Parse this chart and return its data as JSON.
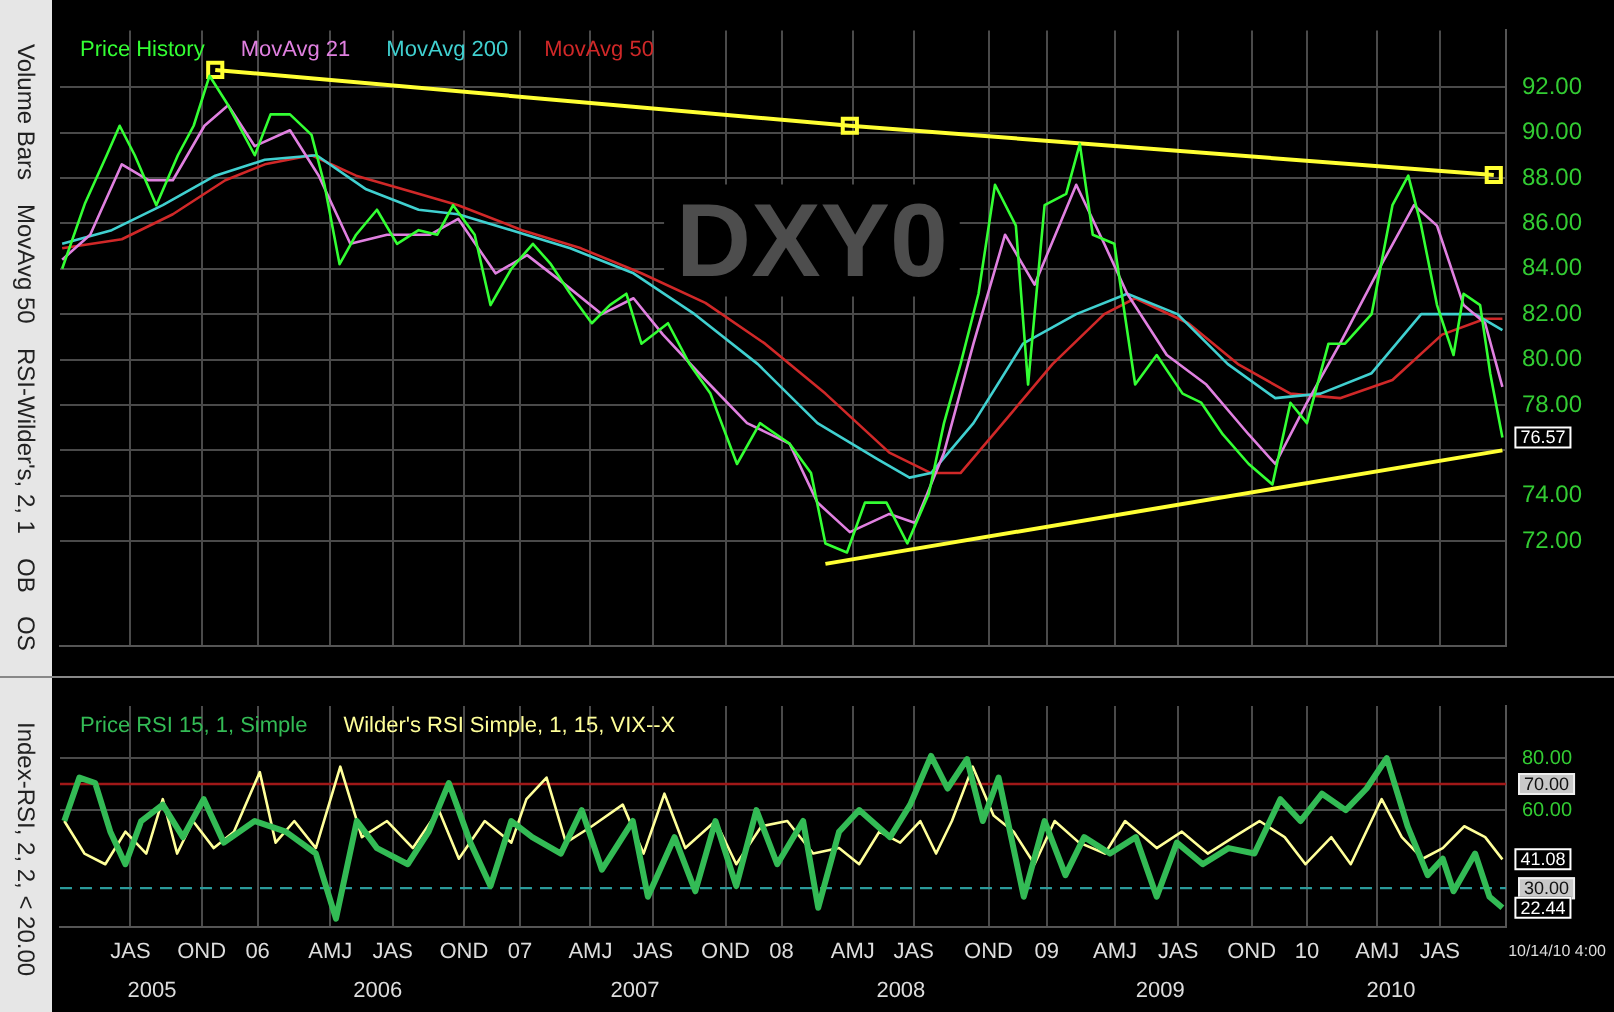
{
  "chart_data": [
    {
      "type": "line",
      "title": "DXY0",
      "legend": "top left",
      "grid": true,
      "marker": "none",
      "tick_labels": "y",
      "xlim": [
        "2005-04-16",
        "2010-10-19"
      ],
      "xticks": [
        {
          "value": "2005-07-23",
          "label": null
        },
        {
          "value": "2005-10-30",
          "label": null
        },
        {
          "value": "2006-01-16",
          "label": null
        },
        {
          "value": "2006-04-27",
          "label": null
        },
        {
          "value": "2006-07-23",
          "label": null
        },
        {
          "value": "2006-10-30",
          "label": null
        },
        {
          "value": "2007-01-16",
          "label": null
        },
        {
          "value": "2007-04-24",
          "label": null
        },
        {
          "value": "2007-07-20",
          "label": null
        },
        {
          "value": "2007-10-29",
          "label": null
        },
        {
          "value": "2008-01-15",
          "label": null
        },
        {
          "value": "2008-04-23",
          "label": null
        },
        {
          "value": "2008-07-17",
          "label": null
        },
        {
          "value": "2008-10-29",
          "label": null
        },
        {
          "value": "2009-01-18",
          "label": null
        },
        {
          "value": "2009-04-23",
          "label": null
        },
        {
          "value": "2009-07-20",
          "label": null
        },
        {
          "value": "2009-10-30",
          "label": null
        },
        {
          "value": "2010-01-15",
          "label": null
        },
        {
          "value": "2010-04-23",
          "label": null
        },
        {
          "value": "2010-07-19",
          "label": null
        }
      ],
      "ylim": [
        67.4,
        94.5
      ],
      "yticks": [
        {
          "value": 72,
          "label": "72.00"
        },
        {
          "value": 74,
          "label": "74.00"
        },
        {
          "value": 76,
          "label": null
        },
        {
          "value": 78,
          "label": "78.00"
        },
        {
          "value": 80,
          "label": "80.00"
        },
        {
          "value": 82,
          "label": "82.00"
        },
        {
          "value": 84,
          "label": "84.00"
        },
        {
          "value": 86,
          "label": "86.00"
        },
        {
          "value": 88,
          "label": "88.00"
        },
        {
          "value": 90,
          "label": "90.00"
        },
        {
          "value": 92,
          "label": "92.00"
        }
      ],
      "series": [
        {
          "name": "Price History",
          "color": "#33ff33",
          "x": [
            "2005-04-19",
            "2005-05-21",
            "2005-06-20",
            "2005-07-08",
            "2005-07-29",
            "2005-08-28",
            "2005-09-27",
            "2005-10-19",
            "2005-11-10",
            "2005-12-06",
            "2006-01-12",
            "2006-02-03",
            "2006-03-02",
            "2006-04-01",
            "2006-04-19",
            "2006-05-10",
            "2006-06-02",
            "2006-07-01",
            "2006-07-29",
            "2006-08-28",
            "2006-09-23",
            "2006-10-15",
            "2006-11-14",
            "2006-12-06",
            "2007-01-04",
            "2007-02-03",
            "2007-02-28",
            "2007-03-27",
            "2007-04-26",
            "2007-05-21",
            "2007-06-13",
            "2007-07-04",
            "2007-08-10",
            "2007-09-09",
            "2007-10-08",
            "2007-11-14",
            "2007-12-16",
            "2008-01-26",
            "2008-02-25",
            "2008-03-16",
            "2008-04-15",
            "2008-05-10",
            "2008-06-09",
            "2008-07-08",
            "2008-08-07",
            "2008-08-28",
            "2008-09-20",
            "2008-10-15",
            "2008-11-07",
            "2008-12-06",
            "2008-12-23",
            "2009-01-15",
            "2009-02-14",
            "2009-03-05",
            "2009-03-23",
            "2009-04-22",
            "2009-05-21",
            "2009-06-20",
            "2009-07-26",
            "2009-08-21",
            "2009-09-20",
            "2009-10-26",
            "2009-11-28",
            "2009-12-23",
            "2010-01-15",
            "2010-02-14",
            "2010-03-09",
            "2010-04-15",
            "2010-05-14",
            "2010-06-05",
            "2010-06-23",
            "2010-07-15",
            "2010-08-07",
            "2010-08-21",
            "2010-09-13",
            "2010-09-27",
            "2010-10-14"
          ],
          "values": [
            84.0,
            86.9,
            89.0,
            90.3,
            89.0,
            86.8,
            89.0,
            90.3,
            92.5,
            91.2,
            89.0,
            90.8,
            90.8,
            89.9,
            87.7,
            84.2,
            85.5,
            86.6,
            85.1,
            85.7,
            85.5,
            86.8,
            85.5,
            82.4,
            84.0,
            85.1,
            84.2,
            82.9,
            81.6,
            82.4,
            82.9,
            80.7,
            81.6,
            79.8,
            78.5,
            75.4,
            77.2,
            76.3,
            75.0,
            71.9,
            71.5,
            73.7,
            73.7,
            71.9,
            74.1,
            77.2,
            79.8,
            82.9,
            87.7,
            85.9,
            78.9,
            86.8,
            87.3,
            89.5,
            85.5,
            85.1,
            78.9,
            80.2,
            78.5,
            78.1,
            76.7,
            75.4,
            74.5,
            78.1,
            77.2,
            80.7,
            80.7,
            82.0,
            86.8,
            88.1,
            85.9,
            82.4,
            80.2,
            82.9,
            82.4,
            79.4,
            76.57
          ]
        },
        {
          "name": "MovAvg 21",
          "color": "#e080e0",
          "x": [
            "2005-04-19",
            "2005-05-28",
            "2005-07-11",
            "2005-08-17",
            "2005-09-20",
            "2005-11-03",
            "2005-12-06",
            "2006-01-12",
            "2006-03-02",
            "2006-04-11",
            "2006-05-25",
            "2006-07-15",
            "2006-09-13",
            "2006-10-22",
            "2006-12-13",
            "2007-01-26",
            "2007-03-20",
            "2007-05-10",
            "2007-06-23",
            "2007-08-03",
            "2007-10-01",
            "2007-11-28",
            "2008-01-26",
            "2008-03-05",
            "2008-04-19",
            "2008-06-13",
            "2008-07-19",
            "2008-08-28",
            "2008-10-08",
            "2008-11-21",
            "2009-01-01",
            "2009-02-28",
            "2009-04-08",
            "2009-05-10",
            "2009-07-04",
            "2009-08-28",
            "2009-10-26",
            "2009-12-02",
            "2010-01-15",
            "2010-03-02",
            "2010-04-29",
            "2010-06-13",
            "2010-07-15",
            "2010-08-21",
            "2010-09-20",
            "2010-10-14"
          ],
          "values": [
            84.4,
            85.5,
            88.6,
            87.9,
            87.9,
            90.3,
            91.2,
            89.4,
            90.1,
            88.1,
            85.1,
            85.5,
            85.5,
            86.2,
            83.8,
            84.6,
            83.3,
            82.0,
            82.7,
            81.1,
            79.1,
            77.2,
            76.3,
            73.7,
            72.4,
            73.2,
            72.8,
            75.9,
            80.7,
            85.5,
            83.3,
            87.7,
            85.1,
            82.9,
            80.2,
            78.9,
            76.7,
            75.4,
            78.1,
            80.7,
            84.2,
            86.8,
            85.9,
            82.4,
            81.6,
            78.8
          ]
        },
        {
          "name": "MovAvg 200",
          "color": "#40d0d0",
          "x": [
            "2005-04-19",
            "2005-06-27",
            "2005-09-06",
            "2005-11-18",
            "2006-01-26",
            "2006-04-08",
            "2006-06-16",
            "2006-08-28",
            "2006-10-22",
            "2007-01-04",
            "2007-03-27",
            "2007-06-23",
            "2007-09-16",
            "2007-12-13",
            "2008-03-05",
            "2008-05-28",
            "2008-07-11",
            "2008-08-10",
            "2008-10-08",
            "2008-12-16",
            "2009-02-28",
            "2009-05-10",
            "2009-07-19",
            "2009-09-27",
            "2009-12-02",
            "2010-02-03",
            "2010-04-15",
            "2010-06-23",
            "2010-09-06",
            "2010-10-14"
          ],
          "values": [
            85.1,
            85.7,
            86.8,
            88.1,
            88.8,
            89.0,
            87.5,
            86.6,
            86.4,
            85.7,
            84.9,
            83.8,
            82.0,
            79.8,
            77.2,
            75.6,
            74.8,
            75.0,
            77.2,
            80.7,
            82.0,
            82.9,
            82.0,
            79.8,
            78.3,
            78.5,
            79.4,
            82.0,
            82.0,
            81.3
          ]
        },
        {
          "name": "MovAvg 50",
          "color": "#d02828",
          "x": [
            "2005-04-19",
            "2005-07-11",
            "2005-09-20",
            "2005-12-02",
            "2006-01-26",
            "2006-04-01",
            "2006-06-02",
            "2006-08-28",
            "2006-10-22",
            "2007-01-19",
            "2007-04-11",
            "2007-07-04",
            "2007-10-01",
            "2007-12-23",
            "2008-03-16",
            "2008-06-13",
            "2008-08-10",
            "2008-09-20",
            "2008-11-18",
            "2009-01-26",
            "2009-04-08",
            "2009-05-21",
            "2009-08-03",
            "2009-10-11",
            "2009-12-23",
            "2010-03-02",
            "2010-05-14",
            "2010-07-22",
            "2010-09-20",
            "2010-10-14"
          ],
          "values": [
            84.9,
            85.3,
            86.4,
            87.9,
            88.6,
            89.0,
            88.1,
            87.3,
            86.8,
            85.7,
            84.9,
            83.8,
            82.5,
            80.7,
            78.5,
            75.9,
            75.0,
            75.0,
            77.2,
            79.8,
            82.0,
            82.7,
            81.6,
            79.8,
            78.5,
            78.3,
            79.1,
            81.1,
            81.8,
            81.8
          ]
        },
        {
          "type": "line",
          "color": "#ffff33",
          "marker": "square",
          "x": [
            "2005-11-18",
            "2008-04-19",
            "2010-10-02"
          ],
          "values": [
            92.76,
            90.3,
            88.13
          ]
        },
        {
          "type": "line",
          "color": "#ffff33",
          "x": [
            "2008-03-16",
            "2010-10-14"
          ],
          "values": [
            71.0,
            76.0
          ]
        }
      ],
      "annotations": [
        {
          "text": "76.57",
          "x": "2010-10-14",
          "y": 76.57
        },
        "Volume Bars",
        "MovAvg 50",
        "RSI-Wilder's, 2, 1",
        "OB",
        "OS"
      ]
    },
    {
      "type": "line",
      "legend": "top left",
      "grid": true,
      "marker": "none",
      "xlim": [
        "2005-04-16",
        "2010-10-19"
      ],
      "xticks": [
        {
          "value": "2005-07-23",
          "label": "JAS"
        },
        {
          "value": "2005-10-30",
          "label": "OND"
        },
        {
          "value": "2006-01-16",
          "label": "06"
        },
        {
          "value": "2006-04-27",
          "label": "AMJ"
        },
        {
          "value": "2006-07-23",
          "label": "JAS"
        },
        {
          "value": "2006-10-30",
          "label": "OND"
        },
        {
          "value": "2007-01-16",
          "label": "07"
        },
        {
          "value": "2007-04-24",
          "label": "AMJ"
        },
        {
          "value": "2007-07-20",
          "label": "JAS"
        },
        {
          "value": "2007-10-29",
          "label": "OND"
        },
        {
          "value": "2008-01-15",
          "label": "08"
        },
        {
          "value": "2008-04-23",
          "label": "AMJ"
        },
        {
          "value": "2008-07-17",
          "label": "JAS"
        },
        {
          "value": "2008-10-29",
          "label": "OND"
        },
        {
          "value": "2009-01-18",
          "label": "09"
        },
        {
          "value": "2009-04-23",
          "label": "AMJ"
        },
        {
          "value": "2009-07-20",
          "label": "JAS"
        },
        {
          "value": "2009-10-30",
          "label": "OND"
        },
        {
          "value": "2010-01-15",
          "label": "10"
        },
        {
          "value": "2010-04-23",
          "label": "AMJ"
        },
        {
          "value": "2010-07-19",
          "label": "JAS"
        }
      ],
      "ylim": [
        15,
        100
      ],
      "x2lim": [
        "2005-04-16",
        "2010-10-19"
      ],
      "x2ticks": [
        {
          "value": "2005-08-22",
          "label": "2005"
        },
        {
          "value": "2006-07-02",
          "label": "2006"
        },
        {
          "value": "2007-06-25",
          "label": "2007"
        },
        {
          "value": "2008-06-29",
          "label": "2008"
        },
        {
          "value": "2009-06-25",
          "label": "2009"
        },
        {
          "value": "2010-05-12",
          "label": "2010"
        }
      ],
      "yticks": [
        {
          "value": 60,
          "label": "60.00"
        },
        {
          "value": 80,
          "label": "80.00"
        }
      ],
      "ref_lines": [
        {
          "axis": "y",
          "value": 70,
          "label": "70.00",
          "color": "#a01818"
        },
        {
          "axis": "y",
          "value": 30,
          "label": "30.00",
          "color": "#2a9a9a",
          "line_style": "dashed"
        }
      ],
      "series": [
        {
          "name": "Price RSI 15, 1, Simple",
          "color": "#33bb55",
          "x": [
            "2005-04-22",
            "2005-05-13",
            "2005-06-04",
            "2005-06-25",
            "2005-07-16",
            "2005-08-07",
            "2005-09-06",
            "2005-10-04",
            "2005-11-02",
            "2005-11-30",
            "2006-01-12",
            "2006-02-24",
            "2006-04-07",
            "2006-05-05",
            "2006-06-03",
            "2006-07-01",
            "2006-08-13",
            "2006-09-11",
            "2006-10-09",
            "2006-11-08",
            "2006-12-06",
            "2007-01-04",
            "2007-02-02",
            "2007-03-14",
            "2007-04-12",
            "2007-05-10",
            "2007-06-22",
            "2007-07-13",
            "2007-08-19",
            "2007-09-17",
            "2007-10-15",
            "2007-11-13",
            "2007-12-11",
            "2008-01-09",
            "2008-02-14",
            "2008-03-06",
            "2008-04-04",
            "2008-05-02",
            "2008-06-14",
            "2008-07-12",
            "2008-08-10",
            "2008-09-02",
            "2008-09-29",
            "2008-10-21",
            "2008-11-12",
            "2008-12-17",
            "2009-01-15",
            "2009-02-13",
            "2009-03-11",
            "2009-04-16",
            "2009-05-22",
            "2009-06-20",
            "2009-07-18",
            "2009-08-23",
            "2009-09-28",
            "2009-11-03",
            "2009-12-09",
            "2010-01-06",
            "2010-02-05",
            "2010-03-10",
            "2010-04-08",
            "2010-05-06",
            "2010-06-04",
            "2010-07-02",
            "2010-07-23",
            "2010-08-07",
            "2010-09-06",
            "2010-09-26",
            "2010-10-14"
          ],
          "values": [
            55.8,
            72.5,
            70.4,
            51.7,
            39.2,
            55.8,
            62.1,
            49.6,
            64.2,
            47.5,
            55.8,
            51.7,
            43.3,
            18.3,
            55.8,
            45.4,
            39.2,
            51.7,
            70.4,
            47.5,
            30.8,
            55.8,
            49.6,
            43.3,
            60,
            37.1,
            55.8,
            26.7,
            49.6,
            28.8,
            55.8,
            30.8,
            60,
            39.2,
            55.8,
            22.5,
            51.7,
            60,
            49.6,
            62.1,
            80.8,
            68.3,
            79.6,
            55.8,
            72.5,
            26.7,
            55.8,
            35,
            49.6,
            43.3,
            49.6,
            26.7,
            47.5,
            39.2,
            45.4,
            43.3,
            64.2,
            55.8,
            66.3,
            60,
            68.3,
            80,
            53.8,
            35,
            41.3,
            28.8,
            43.3,
            26.7,
            22.44
          ]
        },
        {
          "name": "Wilder's RSI Simple, 1, 15, VIX--X",
          "color": "#ffff99",
          "x": [
            "2005-04-22",
            "2005-05-20",
            "2005-06-18",
            "2005-07-16",
            "2005-08-14",
            "2005-09-06",
            "2005-09-26",
            "2005-10-18",
            "2005-11-16",
            "2005-12-14",
            "2006-01-19",
            "2006-02-10",
            "2006-03-08",
            "2006-04-07",
            "2006-05-11",
            "2006-06-10",
            "2006-07-15",
            "2006-08-20",
            "2006-09-25",
            "2006-10-23",
            "2006-11-28",
            "2007-01-04",
            "2007-01-25",
            "2007-02-22",
            "2007-03-21",
            "2007-04-26",
            "2007-06-08",
            "2007-07-07",
            "2007-08-05",
            "2007-09-03",
            "2007-10-15",
            "2007-11-13",
            "2007-12-18",
            "2008-01-23",
            "2008-02-28",
            "2008-04-04",
            "2008-05-02",
            "2008-05-30",
            "2008-06-28",
            "2008-07-26",
            "2008-08-17",
            "2008-09-08",
            "2008-10-07",
            "2008-11-05",
            "2008-12-03",
            "2009-01-01",
            "2009-01-29",
            "2009-03-04",
            "2009-04-09",
            "2009-05-07",
            "2009-06-20",
            "2009-07-25",
            "2009-08-30",
            "2009-10-05",
            "2009-11-10",
            "2009-12-15",
            "2010-01-13",
            "2010-02-18",
            "2010-03-17",
            "2010-04-29",
            "2010-05-27",
            "2010-06-25",
            "2010-07-23",
            "2010-08-22",
            "2010-09-20",
            "2010-10-14"
          ],
          "values": [
            55.8,
            43.3,
            39.2,
            51.7,
            43.3,
            64.2,
            43.3,
            55.8,
            45.4,
            51.7,
            74.6,
            47.5,
            55.8,
            45.4,
            76.7,
            49.6,
            55.8,
            45.4,
            60,
            41.3,
            55.8,
            47.5,
            64.2,
            72.5,
            47.5,
            53.8,
            62.1,
            43.3,
            66.3,
            45.4,
            55.8,
            39.2,
            53.8,
            55.8,
            43.3,
            45.4,
            39.2,
            51.7,
            47.5,
            55.8,
            43.3,
            55.8,
            76.7,
            57.9,
            51.7,
            39.2,
            55.8,
            47.5,
            43.3,
            55.8,
            45.4,
            51.7,
            43.3,
            49.6,
            55.8,
            49.6,
            39.2,
            49.6,
            39.2,
            64.2,
            49.6,
            41.3,
            45.4,
            53.8,
            49.6,
            41.08
          ]
        }
      ],
      "annotations": [
        {
          "text": "41.08",
          "x": "2010-10-14",
          "y": 41.08
        },
        {
          "text": "22.44",
          "x": "2010-10-14",
          "y": 22.44
        },
        "Index-RSI, 2, 2, < 20.00",
        "10/14/10 4:00"
      ]
    }
  ]
}
